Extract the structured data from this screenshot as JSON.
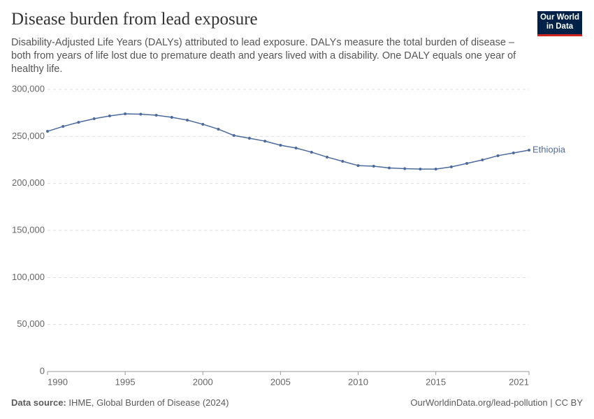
{
  "chart_data": {
    "type": "line",
    "title": "Disease burden from lead exposure",
    "subtitle": "Disability-Adjusted Life Years (DALYs) attributed to lead exposure. DALYs measure the total burden of disease – both from years of life lost due to premature death and years lived with a disability. One DALY equals one year of healthy life.",
    "logo": [
      "Our World",
      "in Data"
    ],
    "source_label": "Data source:",
    "source": "IHME, Global Burden of Disease (2024)",
    "credit": "OurWorldinData.org/lead-pollution | CC BY",
    "x": [
      1990,
      1991,
      1992,
      1993,
      1994,
      1995,
      1996,
      1997,
      1998,
      1999,
      2000,
      2001,
      2002,
      2003,
      2004,
      2005,
      2006,
      2007,
      2008,
      2009,
      2010,
      2011,
      2012,
      2013,
      2014,
      2015,
      2016,
      2017,
      2018,
      2019,
      2020,
      2021
    ],
    "series": [
      {
        "name": "Ethiopia",
        "color": "#4c6a9c",
        "values": [
          255400,
          260600,
          265000,
          268800,
          271800,
          274000,
          273600,
          272500,
          270300,
          267300,
          262900,
          257700,
          251000,
          248000,
          245000,
          240600,
          237600,
          233200,
          228000,
          223500,
          219000,
          218300,
          216500,
          215700,
          215300,
          215300,
          217600,
          221300,
          225000,
          229500,
          232400,
          235400
        ]
      }
    ],
    "xlim": [
      1990,
      2021
    ],
    "xticks": [
      1990,
      1995,
      2000,
      2005,
      2010,
      2015,
      2021
    ],
    "ylim": [
      0,
      300000
    ],
    "yticks": [
      0,
      {
        "value": 50000,
        "label": "50,000"
      },
      {
        "value": 100000,
        "label": "100,000"
      },
      {
        "value": 150000,
        "label": "150,000"
      },
      {
        "value": 200000,
        "label": "200,000"
      },
      {
        "value": 250000,
        "label": "250,000"
      },
      {
        "value": 300000,
        "label": "300,000"
      }
    ],
    "grid": true
  }
}
